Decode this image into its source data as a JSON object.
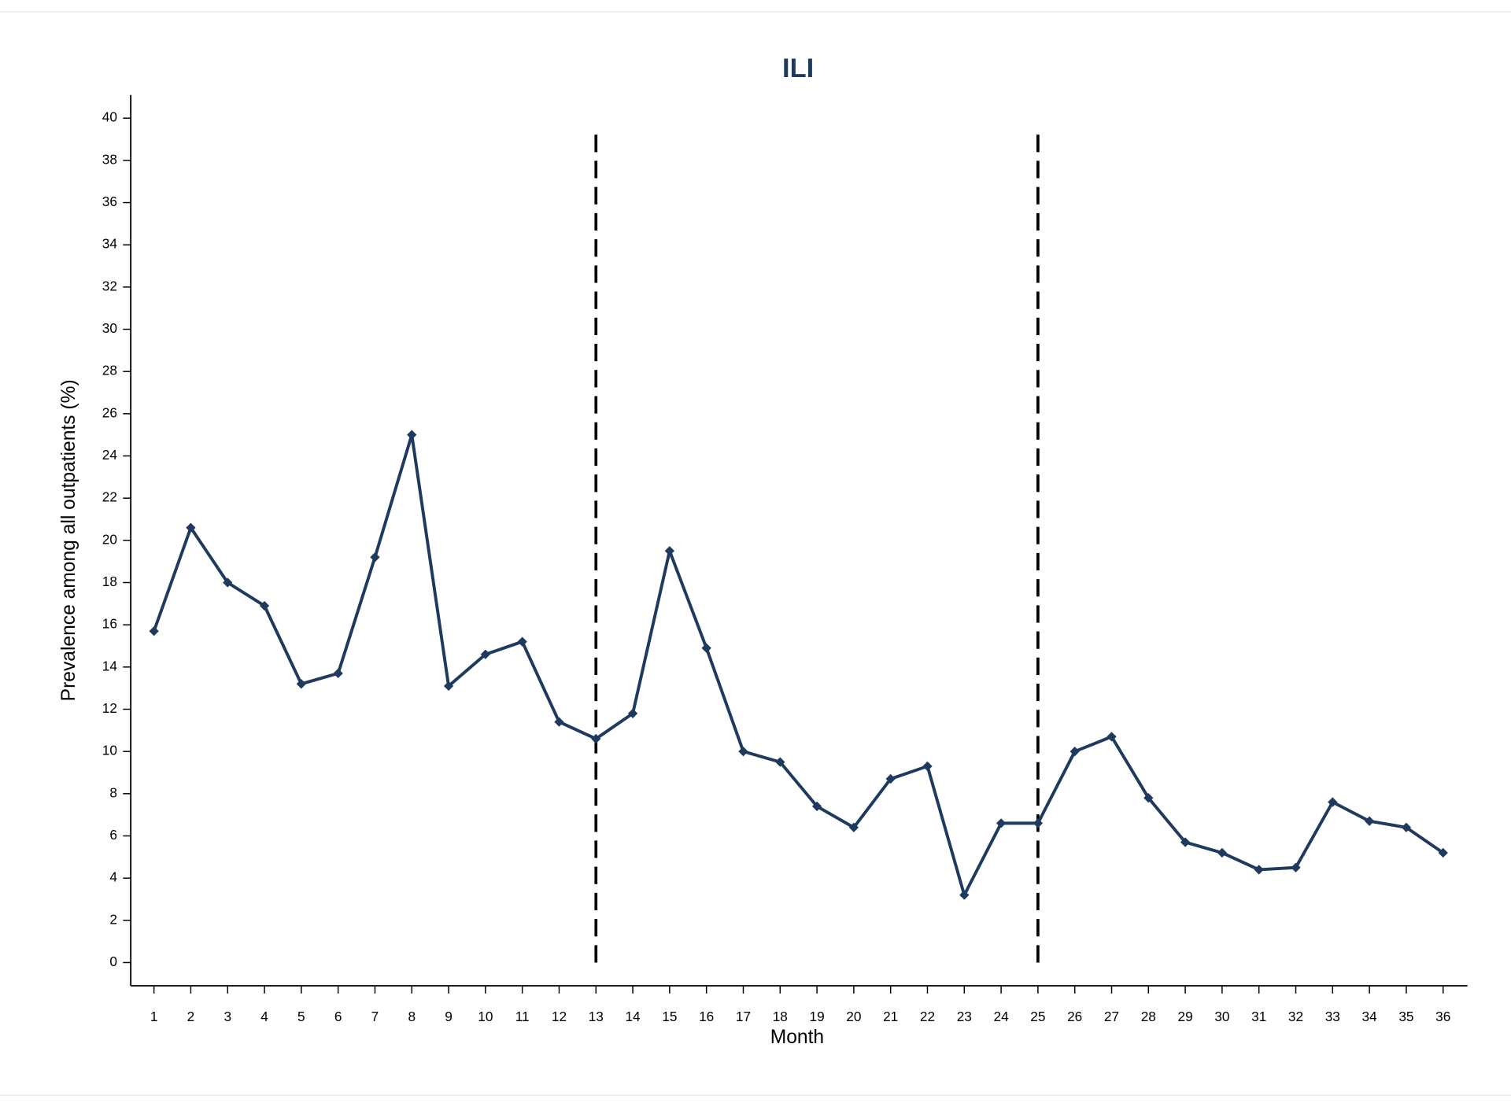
{
  "chart_data": {
    "type": "line",
    "title": "ILI",
    "x_label": "Month",
    "y_label": "Prevalence among all outpatients (%)",
    "x": [
      1,
      2,
      3,
      4,
      5,
      6,
      7,
      8,
      9,
      10,
      11,
      12,
      13,
      14,
      15,
      16,
      17,
      18,
      19,
      20,
      21,
      22,
      23,
      24,
      25,
      26,
      27,
      28,
      29,
      30,
      31,
      32,
      33,
      34,
      35,
      36
    ],
    "series": [
      {
        "name": "ILI",
        "color": "#1f3a5f",
        "values": [
          15.7,
          20.6,
          18.0,
          16.9,
          13.2,
          13.7,
          19.2,
          25.0,
          13.1,
          14.6,
          15.2,
          11.4,
          10.6,
          11.8,
          19.5,
          14.9,
          10.0,
          9.5,
          7.4,
          6.4,
          8.7,
          9.3,
          3.2,
          6.6,
          6.6,
          10.0,
          10.7,
          7.8,
          5.7,
          5.2,
          4.4,
          4.5,
          7.6,
          6.7,
          6.4,
          5.2
        ]
      }
    ],
    "xlim": [
      0.37,
      36.66
    ],
    "ylim": [
      -1.1,
      41.1
    ],
    "xticks": [
      1,
      2,
      3,
      4,
      5,
      6,
      7,
      8,
      9,
      10,
      11,
      12,
      13,
      14,
      15,
      16,
      17,
      18,
      19,
      20,
      21,
      22,
      23,
      24,
      25,
      26,
      27,
      28,
      29,
      30,
      31,
      32,
      33,
      34,
      35,
      36
    ],
    "yticks": [
      0,
      2,
      4,
      6,
      8,
      10,
      12,
      14,
      16,
      18,
      20,
      22,
      24,
      26,
      28,
      30,
      32,
      34,
      36,
      38,
      40
    ],
    "vlines": [
      13,
      25
    ],
    "grid": false
  }
}
